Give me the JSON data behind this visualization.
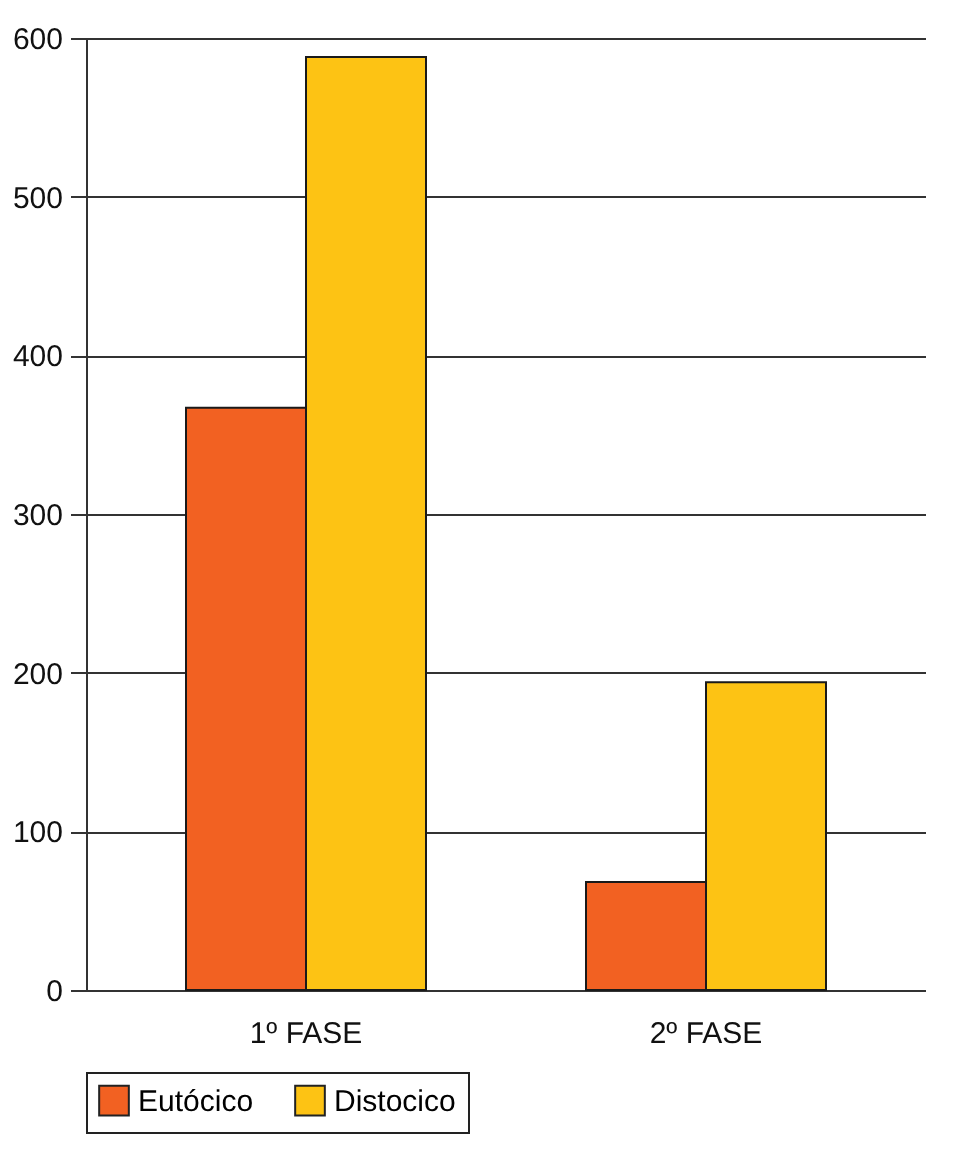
{
  "chart_data": {
    "type": "bar",
    "categories": [
      "1º FASE",
      "2º FASE"
    ],
    "series": [
      {
        "name": "Eutócico",
        "color": "#f26122",
        "values": [
          367,
          68
        ]
      },
      {
        "name": "Distocico",
        "color": "#fdc314",
        "values": [
          588,
          194
        ]
      }
    ],
    "ylim": [
      0,
      600
    ],
    "yticks": [
      0,
      100,
      200,
      300,
      400,
      500,
      600
    ],
    "grid": "y",
    "legend": "bottom"
  }
}
